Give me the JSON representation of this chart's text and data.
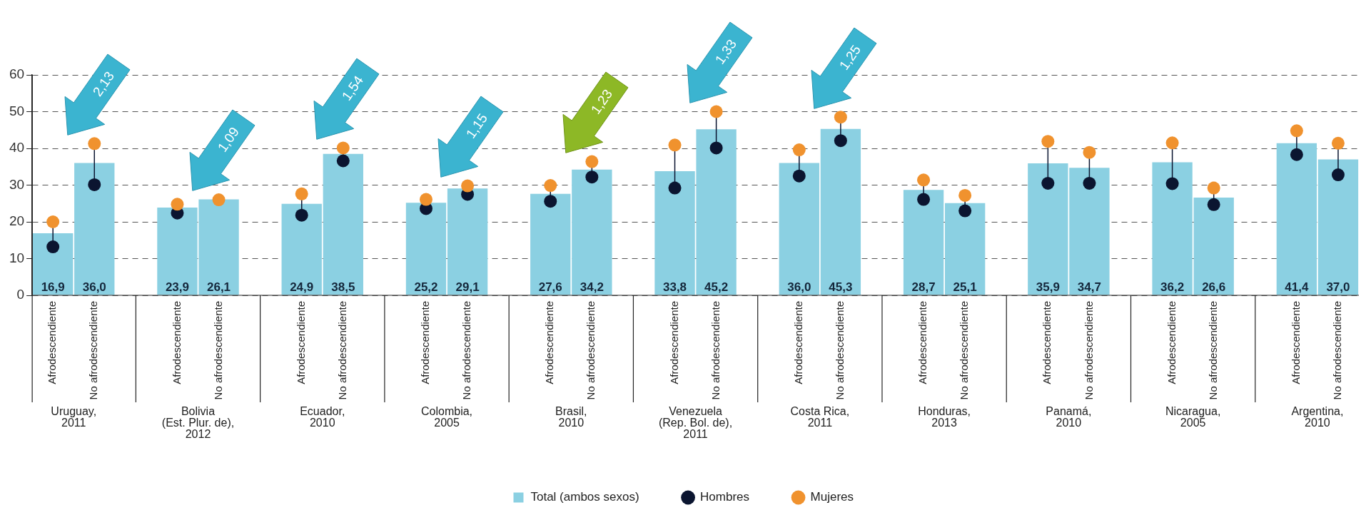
{
  "chart_data": {
    "type": "bar",
    "categories": [
      "Afrodescendiente",
      "No afrodescendiente",
      null,
      "Afrodescendiente",
      "No afrodescendiente",
      null,
      "Afrodescendiente",
      "No afrodescendiente",
      null,
      "Afrodescendiente",
      "No afrodescendiente",
      null,
      "Afrodescendiente",
      "No afrodescendiente",
      null,
      "Afrodescendiente",
      "No afrodescendiente",
      null,
      "Afrodescendiente",
      "No afrodescendiente",
      null,
      "Afrodescendiente",
      "No afrodescendiente",
      null,
      "Afrodescendiente",
      "No afrodescendiente",
      null,
      "Afrodescendiente",
      "No afrodescendiente",
      null,
      "Afrodescendiente",
      "No afrodescendiente"
    ],
    "series": [
      {
        "name": "Total (ambos sexos)",
        "color": "#8bd0e2",
        "values": [
          16.9,
          36.0,
          null,
          23.9,
          26.1,
          null,
          24.9,
          38.5,
          null,
          25.2,
          29.1,
          null,
          27.6,
          34.2,
          null,
          33.8,
          45.2,
          null,
          36.0,
          45.3,
          null,
          28.7,
          25.1,
          null,
          35.9,
          34.7,
          null,
          36.2,
          26.6,
          null,
          41.4,
          37.0
        ],
        "value_labels": [
          "16,9",
          "36,0",
          null,
          "23,9",
          "26,1",
          null,
          "24,9",
          "38,5",
          null,
          "25,2",
          "29,1",
          null,
          "27,6",
          "34,2",
          null,
          "33,8",
          "45,2",
          null,
          "36,0",
          "45,3",
          null,
          "28,7",
          "25,1",
          null,
          "35,9",
          "34,7",
          null,
          "36,2",
          "26,6",
          null,
          "41,4",
          "37,0"
        ]
      },
      {
        "name": "Hombres",
        "type": "scatter",
        "color": "#0b1530",
        "values": [
          13.2,
          30.1,
          null,
          22.4,
          null,
          null,
          21.8,
          36.6,
          null,
          23.6,
          27.5,
          null,
          25.6,
          32.2,
          null,
          29.2,
          40.1,
          null,
          32.5,
          42.1,
          null,
          26.1,
          23.0,
          null,
          30.5,
          30.5,
          null,
          30.4,
          24.7,
          null,
          38.3,
          32.8
        ]
      },
      {
        "name": "Mujeres",
        "type": "scatter",
        "color": "#f0922e",
        "values": [
          20.0,
          41.3,
          null,
          24.8,
          26.0,
          null,
          27.6,
          40.1,
          null,
          26.1,
          29.8,
          null,
          29.9,
          36.4,
          null,
          40.9,
          50.0,
          null,
          39.6,
          48.5,
          null,
          31.4,
          27.2,
          null,
          41.9,
          38.9,
          null,
          41.5,
          29.2,
          null,
          44.8,
          41.4
        ]
      }
    ],
    "ylim": [
      0,
      60
    ],
    "yticks": [
      0,
      10,
      20,
      30,
      40,
      50,
      60
    ],
    "grid": "y",
    "legend": "bottom",
    "marker": "circle",
    "annotations": [
      "Uruguay,\n2011",
      "Bolivia\n(Est. Plur. de),\n2012",
      "Ecuador,\n2010",
      "Colombia,\n2005",
      "Brasil,\n2010",
      "Venezuela\n(Rep. Bol. de),\n2011",
      "Costa Rica,\n2011",
      "Honduras,\n2013",
      "Panamá,\n2010",
      "Nicaragua,\n2005",
      "Argentina,\n2010",
      "2,13",
      "1,09",
      "1,54",
      "1,15",
      "1,23",
      "1,33",
      "1,25"
    ]
  }
}
